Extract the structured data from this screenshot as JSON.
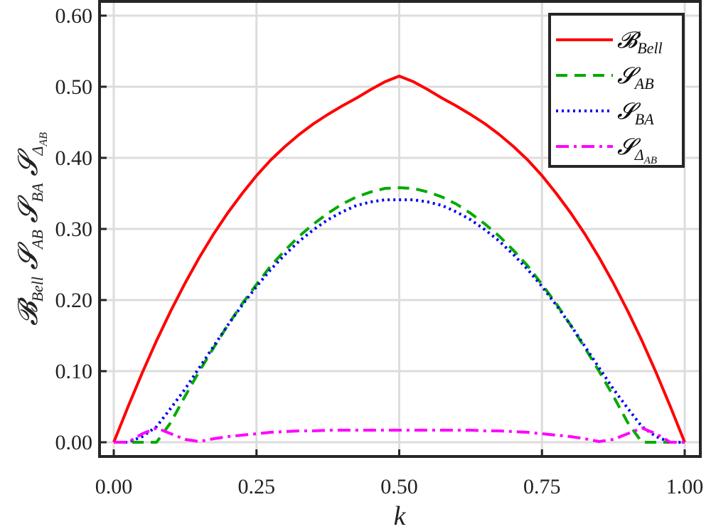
{
  "chart_data": {
    "type": "line",
    "xlabel": "k",
    "ylabel": "𝓑Bell 𝓢AB 𝓢BA 𝓢ΔAB",
    "xlim": [
      0,
      1
    ],
    "ylim": [
      0,
      0.6
    ],
    "x_ticks": [
      "0.00",
      "0.25",
      "0.50",
      "0.75",
      "1.00"
    ],
    "y_ticks": [
      "0.00",
      "0.10",
      "0.20",
      "0.30",
      "0.40",
      "0.50",
      "0.60"
    ],
    "grid": true,
    "legend_position": "top-right",
    "x": [
      0.0,
      0.025,
      0.05,
      0.075,
      0.1,
      0.125,
      0.15,
      0.175,
      0.2,
      0.225,
      0.25,
      0.275,
      0.3,
      0.325,
      0.35,
      0.375,
      0.4,
      0.425,
      0.45,
      0.475,
      0.5,
      0.525,
      0.55,
      0.575,
      0.6,
      0.625,
      0.65,
      0.675,
      0.7,
      0.725,
      0.75,
      0.775,
      0.8,
      0.825,
      0.85,
      0.875,
      0.9,
      0.925,
      0.95,
      0.975,
      1.0
    ],
    "series": [
      {
        "name": "𝓑Bell",
        "color": "#ff0000",
        "dash": "solid",
        "values": [
          0.0,
          0.05,
          0.098,
          0.143,
          0.185,
          0.224,
          0.26,
          0.293,
          0.323,
          0.35,
          0.375,
          0.397,
          0.416,
          0.433,
          0.448,
          0.461,
          0.473,
          0.484,
          0.496,
          0.507,
          0.515,
          0.507,
          0.496,
          0.484,
          0.473,
          0.461,
          0.448,
          0.433,
          0.416,
          0.397,
          0.375,
          0.35,
          0.323,
          0.293,
          0.26,
          0.224,
          0.185,
          0.143,
          0.098,
          0.05,
          0.0
        ]
      },
      {
        "name": "𝓢AB",
        "color": "#00aa00",
        "dash": "dashed",
        "values": [
          0.0,
          0.0,
          0.0,
          0.0,
          0.028,
          0.065,
          0.1,
          0.133,
          0.165,
          0.195,
          0.222,
          0.248,
          0.27,
          0.29,
          0.307,
          0.322,
          0.335,
          0.345,
          0.352,
          0.357,
          0.358,
          0.357,
          0.352,
          0.345,
          0.335,
          0.322,
          0.307,
          0.29,
          0.27,
          0.248,
          0.222,
          0.195,
          0.165,
          0.133,
          0.1,
          0.065,
          0.028,
          0.0,
          0.0,
          0.0,
          0.0
        ]
      },
      {
        "name": "𝓢BA",
        "color": "#0000ee",
        "dash": "dotted",
        "values": [
          0.0,
          0.0,
          0.008,
          0.022,
          0.048,
          0.075,
          0.105,
          0.135,
          0.165,
          0.193,
          0.219,
          0.243,
          0.264,
          0.283,
          0.299,
          0.313,
          0.324,
          0.333,
          0.338,
          0.341,
          0.341,
          0.341,
          0.338,
          0.333,
          0.324,
          0.313,
          0.299,
          0.283,
          0.264,
          0.243,
          0.219,
          0.193,
          0.165,
          0.135,
          0.105,
          0.075,
          0.048,
          0.022,
          0.008,
          0.0,
          0.0
        ]
      },
      {
        "name": "𝓢ΔAB",
        "color": "#ff00ff",
        "dash": "dashdot",
        "values": [
          0.0,
          0.0,
          0.012,
          0.02,
          0.012,
          0.004,
          0.001,
          0.005,
          0.008,
          0.01,
          0.012,
          0.014,
          0.015,
          0.016,
          0.016,
          0.017,
          0.017,
          0.017,
          0.017,
          0.017,
          0.017,
          0.017,
          0.017,
          0.017,
          0.017,
          0.017,
          0.016,
          0.016,
          0.015,
          0.014,
          0.012,
          0.01,
          0.008,
          0.005,
          0.001,
          0.004,
          0.012,
          0.02,
          0.012,
          0.0,
          0.0
        ]
      }
    ]
  }
}
